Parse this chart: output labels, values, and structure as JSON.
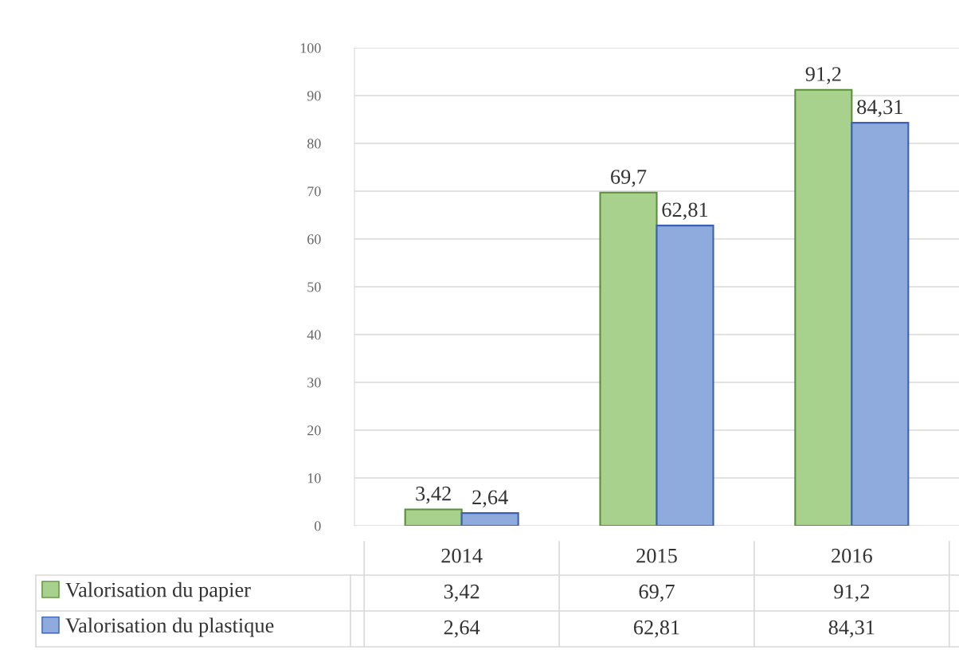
{
  "chart_data": {
    "type": "bar",
    "categories": [
      "2014",
      "2015",
      "2016"
    ],
    "series": [
      {
        "name": "Valorisation du papier",
        "color": "#a9d18e",
        "values": [
          3.42,
          69.7,
          91.2
        ],
        "value_labels": [
          "3,42",
          "69,7",
          "91,2"
        ]
      },
      {
        "name": "Valorisation du plastique",
        "color": "#8faadc",
        "values": [
          2.64,
          62.81,
          84.31
        ],
        "value_labels": [
          "2,64",
          "62,81",
          "84,31"
        ]
      }
    ],
    "ylim": [
      0,
      100
    ],
    "yticks": [
      0,
      10,
      20,
      30,
      40,
      50,
      60,
      70,
      80,
      90,
      100
    ],
    "grid": "y",
    "legend": "bottom left"
  }
}
